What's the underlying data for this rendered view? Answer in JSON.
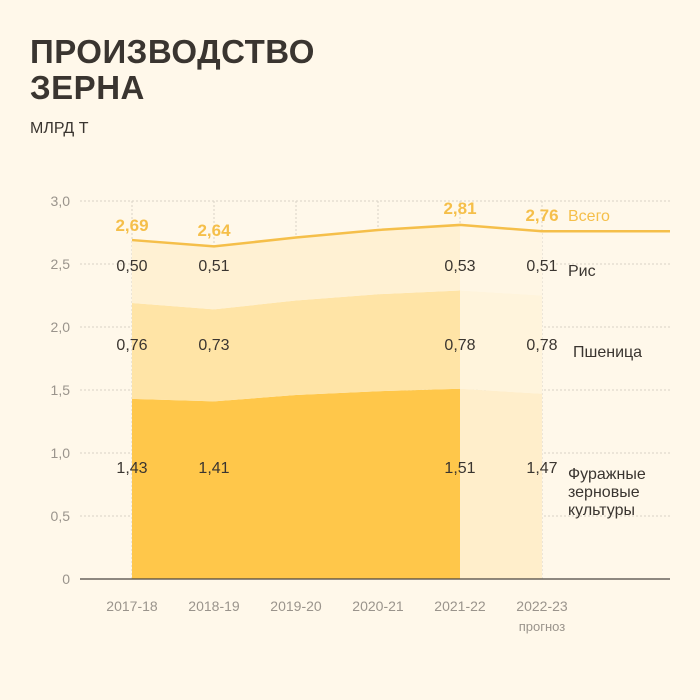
{
  "header": {
    "title_line1": "ПРОИЗВОДСТВО",
    "title_line2": "ЗЕРНА",
    "unit": "МЛРД Т"
  },
  "chart_data": {
    "type": "area",
    "stacked": true,
    "categories": [
      "2017-18",
      "2018-19",
      "2019-20",
      "2020-21",
      "2021-22",
      "2022-23"
    ],
    "forecast_category": "2022-23",
    "forecast_note": "прогноз",
    "ylim": [
      0,
      3.0
    ],
    "yticks": [
      "0",
      "0,5",
      "1,0",
      "1,5",
      "2,0",
      "2,5",
      "3,0"
    ],
    "grid": true,
    "series": [
      {
        "name": "Фуражные зерновые культуры",
        "label_lines": [
          "Фуражные",
          "зерновые",
          "культуры"
        ],
        "values": [
          1.43,
          1.41,
          1.46,
          1.49,
          1.51,
          1.47
        ],
        "labels": [
          "1,43",
          "1,41",
          "",
          "",
          "1,51",
          "1,47"
        ],
        "color": "#ffc74a"
      },
      {
        "name": "Пшеница",
        "label_lines": [
          "Пшеница"
        ],
        "values": [
          0.76,
          0.73,
          0.75,
          0.77,
          0.78,
          0.78
        ],
        "labels": [
          "0,76",
          "0,73",
          "",
          "",
          "0,78",
          "0,78"
        ],
        "color": "#ffe4a6"
      },
      {
        "name": "Рис",
        "label_lines": [
          "Рис"
        ],
        "values": [
          0.5,
          0.51,
          0.5,
          0.51,
          0.53,
          0.51
        ],
        "labels": [
          "0,50",
          "0,51",
          "",
          "",
          "0,53",
          "0,51"
        ],
        "color": "#fff1d3"
      }
    ],
    "total": {
      "name": "Всего",
      "values": [
        2.69,
        2.64,
        2.71,
        2.77,
        2.81,
        2.76
      ],
      "labels": [
        "2,69",
        "2,64",
        "",
        "",
        "2,81",
        "2,76"
      ],
      "color": "#f5bf4a"
    },
    "colors": {
      "feed_forecast": "#ffeecb",
      "wheat_forecast": "#fff4dc",
      "rice_forecast": "#fff6e4",
      "grid": "#d8d2c6",
      "axis": "#4a4540"
    }
  }
}
